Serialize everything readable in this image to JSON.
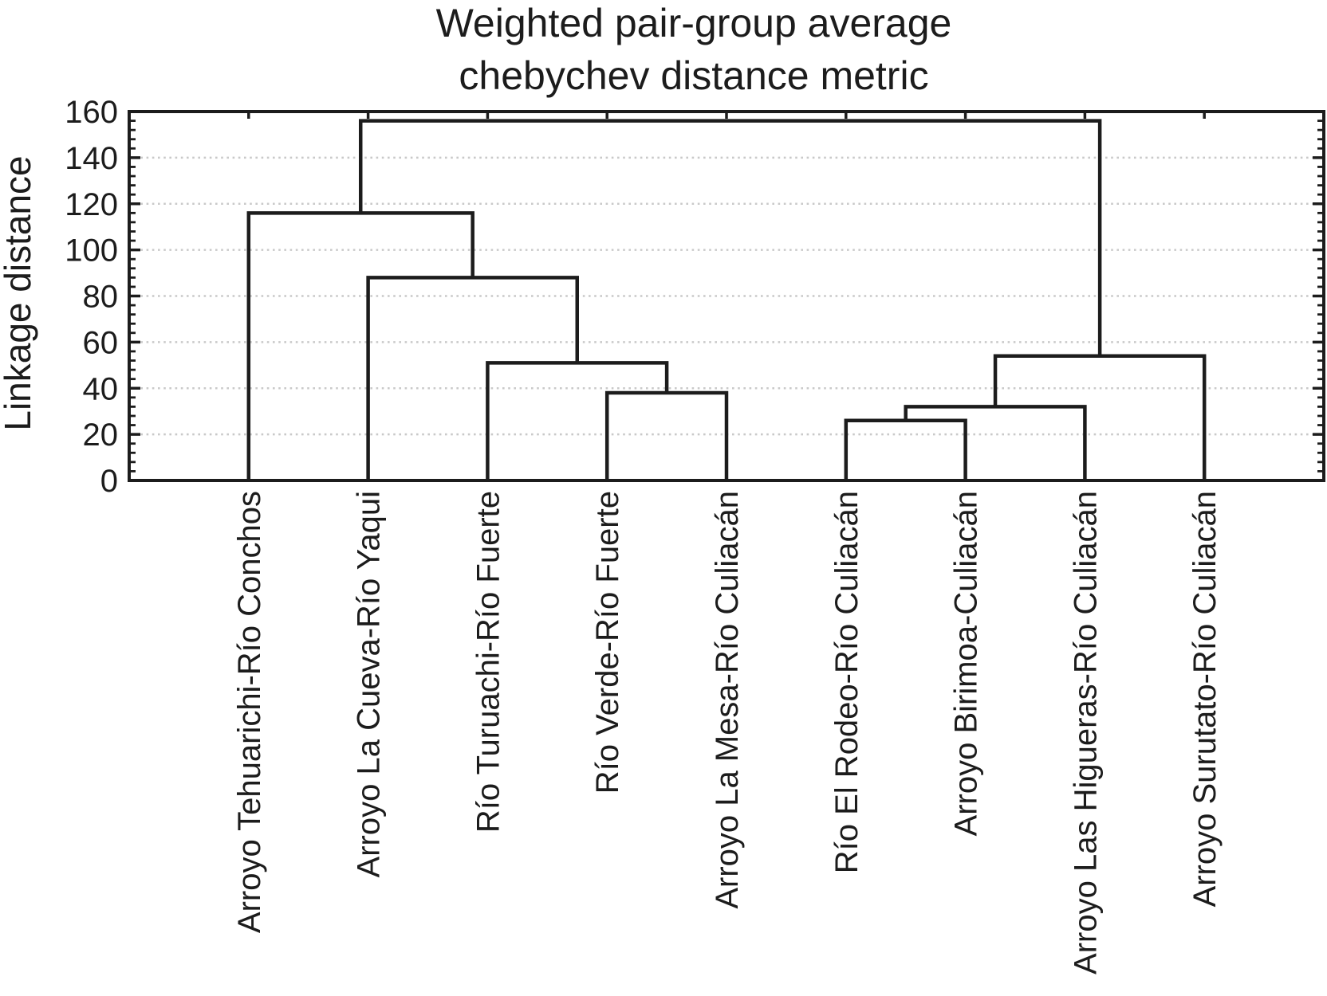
{
  "title": {
    "line1": "Weighted pair-group average",
    "line2": "chebychev distance metric"
  },
  "y_axis": {
    "label": "Linkage distance",
    "ticks": [
      0,
      20,
      40,
      60,
      80,
      100,
      120,
      140,
      160
    ],
    "minor_step": 4,
    "range": [
      0,
      160
    ]
  },
  "colors": {
    "line": "#1c1c1c",
    "grid": "#c9c9c9",
    "background": "#ffffff"
  },
  "chart_data": {
    "type": "dendrogram",
    "title": "Weighted pair-group average chebychev distance metric",
    "linkage_method": "Weighted pair-group average",
    "distance_metric": "chebychev",
    "ylabel": "Linkage distance",
    "ylim": [
      0,
      160
    ],
    "grid": "horizontal dotted lines at each major tick",
    "orientation": "vertical, leaves on bottom",
    "leaves": [
      "Arroyo Tehuarichi-Río Conchos",
      "Arroyo La Cueva-Río Yaqui",
      "Río Turuachi-Río Fuerte",
      "Río Verde-Río Fuerte",
      "Arroyo La Mesa-Río Culiacán",
      "Río El Rodeo-Río Culiacán",
      "Arroyo Birimoa-Culiacán",
      "Arroyo Las Higueras-Río Culiacán",
      "Arroyo Surutato-Río Culiacán"
    ],
    "tree": {
      "height": 156,
      "children": [
        {
          "height": 116,
          "children": [
            {
              "leaf": "Arroyo Tehuarichi-Río Conchos"
            },
            {
              "height": 88,
              "children": [
                {
                  "leaf": "Arroyo La Cueva-Río Yaqui"
                },
                {
                  "height": 51,
                  "children": [
                    {
                      "leaf": "Río Turuachi-Río Fuerte"
                    },
                    {
                      "height": 38,
                      "children": [
                        {
                          "leaf": "Río Verde-Río Fuerte"
                        },
                        {
                          "leaf": "Arroyo La Mesa-Río Culiacán"
                        }
                      ]
                    }
                  ]
                }
              ]
            }
          ]
        },
        {
          "height": 54,
          "children": [
            {
              "height": 32,
              "children": [
                {
                  "height": 26,
                  "children": [
                    {
                      "leaf": "Río El Rodeo-Río Culiacán"
                    },
                    {
                      "leaf": "Arroyo Birimoa-Culiacán"
                    }
                  ]
                },
                {
                  "leaf": "Arroyo Las Higueras-Río Culiacán"
                }
              ]
            },
            {
              "leaf": "Arroyo Surutato-Río Culiacán"
            }
          ]
        }
      ]
    }
  }
}
